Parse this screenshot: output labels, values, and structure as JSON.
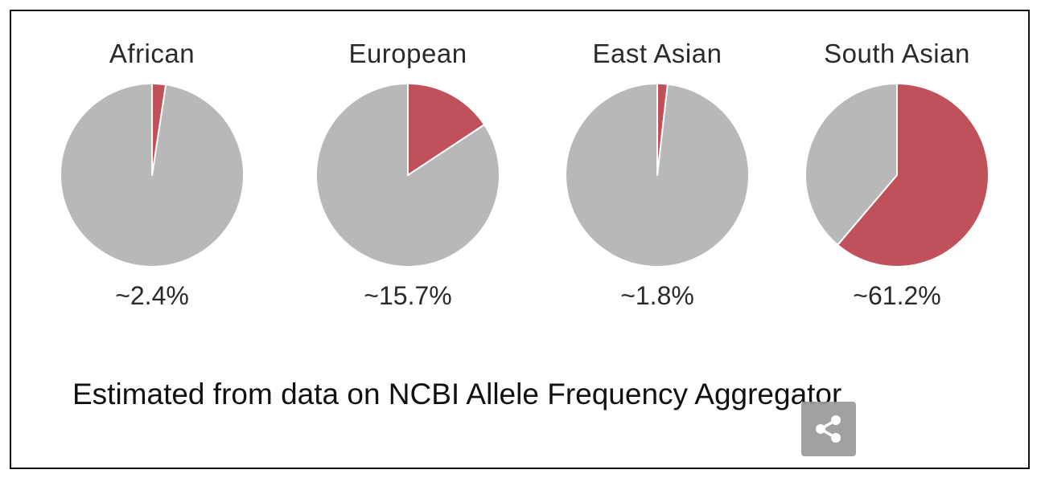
{
  "chart_data": {
    "type": "pie",
    "caption": "Estimated from data on NCBI Allele Frequency Aggregator",
    "colors": {
      "highlight": "#c0505a",
      "remainder": "#b8b8b8",
      "separator": "#ffffff"
    },
    "pies": [
      {
        "title": "African",
        "label": "~2.4%",
        "value": 2.4
      },
      {
        "title": "European",
        "label": "~15.7%",
        "value": 15.7
      },
      {
        "title": "East Asian",
        "label": "~1.8%",
        "value": 1.8
      },
      {
        "title": "South Asian",
        "label": "~61.2%",
        "value": 61.2
      }
    ]
  },
  "overlay": {
    "share_icon": "share-icon"
  }
}
